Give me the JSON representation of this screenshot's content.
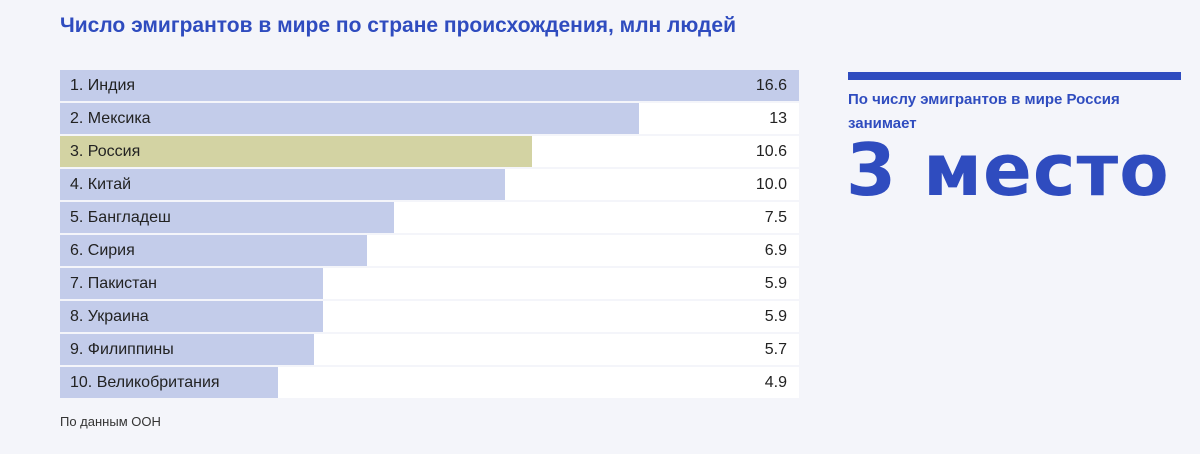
{
  "title": "Число эмигрантов в мире по стране происхождения, млн людей",
  "source": "По данным ООН",
  "callout": {
    "text": "По числу эмигрантов в мире Россия занимает",
    "big": "3 место"
  },
  "colors": {
    "bar": "#c3ccea",
    "highlight": "#d3d3a3",
    "accent": "#2f4cbf"
  },
  "chart_data": {
    "type": "bar",
    "orientation": "horizontal",
    "title": "Число эмигрантов в мире по стране происхождения, млн людей",
    "categories": [
      "1. Индия",
      "2. Мексика",
      "3. Россия",
      "4. Китай",
      "5. Бангладеш",
      "6. Сирия",
      "7. Пакистан",
      "8. Украина",
      "9. Филиппины",
      "10. Великобритания"
    ],
    "values": [
      16.6,
      13,
      10.6,
      10.0,
      7.5,
      6.9,
      5.9,
      5.9,
      5.7,
      4.9
    ],
    "value_labels": [
      "16.6",
      "13",
      "10.6",
      "10.0",
      "7.5",
      "6.9",
      "5.9",
      "5.9",
      "5.7",
      "4.9"
    ],
    "highlight_index": 2,
    "xlim": [
      0,
      16.6
    ]
  }
}
